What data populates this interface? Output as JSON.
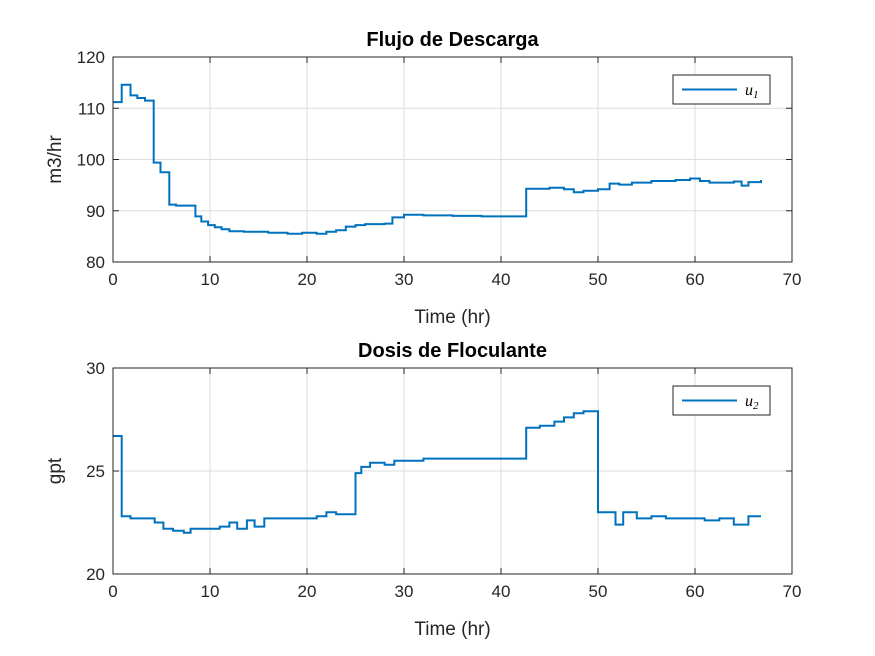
{
  "colors": {
    "line": "#0072BD",
    "grid": "#dcdcdc",
    "axis": "#262626",
    "background": "#ffffff"
  },
  "chart_data": [
    {
      "type": "line",
      "title": "Flujo de Descarga",
      "xlabel": "Time (hr)",
      "ylabel": "m3/hr",
      "xlim": [
        0,
        70
      ],
      "ylim": [
        80,
        120
      ],
      "xticks": [
        "0",
        "10",
        "20",
        "30",
        "40",
        "50",
        "60",
        "70"
      ],
      "yticks": [
        "80",
        "90",
        "100",
        "110",
        "120"
      ],
      "grid": true,
      "legend_position": "top-right",
      "series": [
        {
          "name": "u",
          "name_sub": "1",
          "step": true,
          "x": [
            0,
            0.9,
            1.8,
            2.5,
            3.3,
            4.2,
            4.9,
            5.8,
            6.5,
            8.5,
            9.1,
            9.8,
            10.5,
            11.2,
            12.0,
            13.5,
            16.0,
            18.0,
            19.5,
            21.0,
            22.0,
            23.0,
            24.0,
            25.0,
            26.0,
            28.0,
            28.8,
            30.0,
            32.0,
            35.0,
            38.0,
            42.6,
            45.0,
            46.5,
            47.5,
            48.5,
            50.0,
            51.2,
            52.2,
            53.5,
            55.5,
            58.0,
            59.5,
            60.5,
            61.5,
            64.0,
            64.8,
            65.5,
            66.8
          ],
          "y": [
            111.2,
            114.6,
            112.5,
            112.0,
            111.5,
            99.4,
            97.5,
            91.2,
            91.0,
            88.9,
            87.9,
            87.2,
            86.8,
            86.4,
            86.0,
            85.9,
            85.7,
            85.5,
            85.7,
            85.5,
            85.9,
            86.2,
            86.9,
            87.2,
            87.4,
            87.5,
            88.7,
            89.2,
            89.1,
            89.0,
            88.9,
            94.3,
            94.5,
            94.2,
            93.6,
            93.9,
            94.2,
            95.3,
            95.1,
            95.5,
            95.8,
            96.0,
            96.3,
            95.8,
            95.5,
            95.7,
            94.9,
            95.6,
            96.0
          ]
        }
      ]
    },
    {
      "type": "line",
      "title": "Dosis de Floculante",
      "xlabel": "Time (hr)",
      "ylabel": "gpt",
      "xlim": [
        0,
        70
      ],
      "ylim": [
        20,
        30
      ],
      "xticks": [
        "0",
        "10",
        "20",
        "30",
        "40",
        "50",
        "60",
        "70"
      ],
      "yticks": [
        "20",
        "25",
        "30"
      ],
      "grid": true,
      "legend_position": "top-right",
      "series": [
        {
          "name": "u",
          "name_sub": "2",
          "step": true,
          "x": [
            0,
            0.9,
            1.8,
            4.3,
            5.2,
            6.2,
            7.3,
            8.0,
            11.0,
            12.0,
            12.8,
            13.8,
            14.6,
            15.6,
            21.0,
            22.0,
            23.0,
            25.0,
            25.6,
            26.5,
            28.0,
            29.0,
            32.0,
            42.6,
            44.0,
            45.5,
            46.5,
            47.5,
            48.5,
            50.0,
            51.8,
            52.6,
            54.0,
            55.5,
            57.0,
            61.0,
            62.5,
            64.0,
            65.5,
            66.8
          ],
          "y": [
            26.7,
            22.8,
            22.7,
            22.5,
            22.2,
            22.1,
            22.0,
            22.2,
            22.3,
            22.5,
            22.2,
            22.6,
            22.3,
            22.7,
            22.8,
            23.0,
            22.9,
            24.9,
            25.2,
            25.4,
            25.3,
            25.5,
            25.6,
            27.1,
            27.2,
            27.4,
            27.6,
            27.8,
            27.9,
            23.0,
            22.4,
            23.0,
            22.7,
            22.8,
            22.7,
            22.6,
            22.7,
            22.4,
            22.8,
            22.8
          ]
        }
      ]
    }
  ]
}
